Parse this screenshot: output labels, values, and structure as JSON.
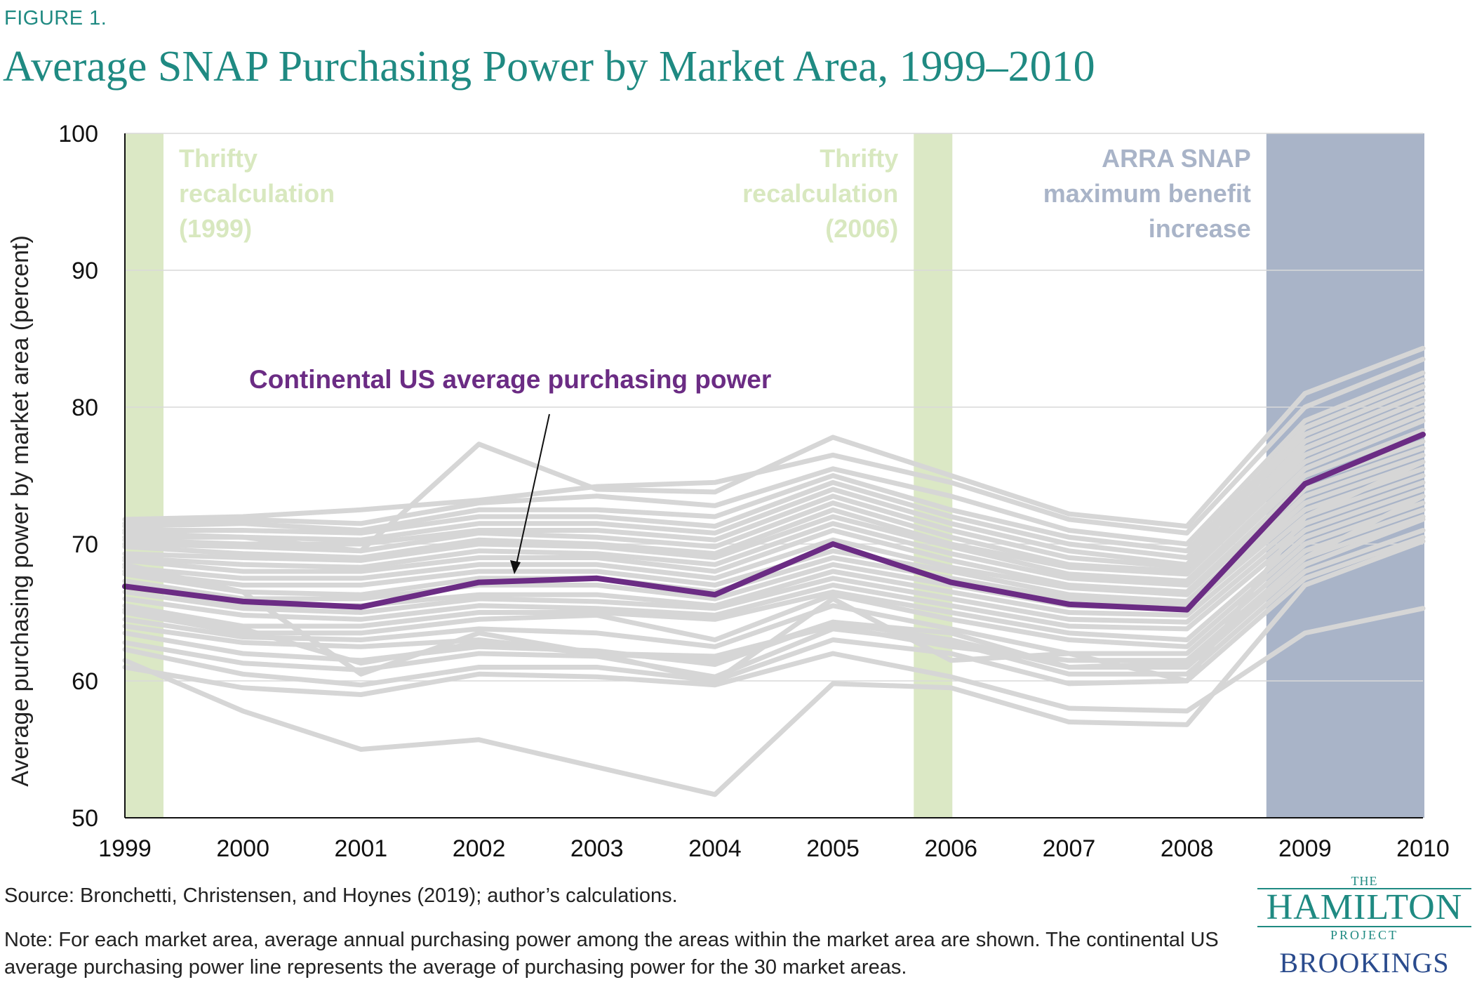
{
  "figure_label": "FIGURE 1.",
  "title": "Average SNAP Purchasing Power by Market Area, 1999–2010",
  "source": "Source: Bronchetti, Christensen, and Hoynes (2019); author’s calculations.",
  "note": "Note: For each market area, average annual purchasing power among the areas within the market area are shown. The continental US average purchasing power line represents the average of purchasing power for the 30 market areas.",
  "logo": {
    "the": "THE",
    "name": "HAMILTON",
    "project": "PROJECT",
    "org": "BROOKINGS"
  },
  "colors": {
    "title": "#1f8a82",
    "highlight": "#6b2c84",
    "background_lines": "#d6d6d6",
    "thrifty_band": "#dbe8c5",
    "arra_band": "#a9b4c8"
  },
  "chart_data": {
    "type": "line",
    "ylabel": "Average purchasing power by  market area (percent)",
    "xlabel": "",
    "ylim": [
      50,
      100
    ],
    "yticks": [
      50,
      60,
      70,
      80,
      90,
      100
    ],
    "grid": "horizontal",
    "x": [
      "1999",
      "2000",
      "2001",
      "2002",
      "2003",
      "2004",
      "2005",
      "2006",
      "2007",
      "2008",
      "2009",
      "2010"
    ],
    "highlight_series": {
      "name": "Continental US average purchasing power",
      "values": [
        66.9,
        65.8,
        65.4,
        67.2,
        67.5,
        66.3,
        70.0,
        67.2,
        65.6,
        65.2,
        74.4,
        78.0
      ]
    },
    "annotation": "Continental US average purchasing power",
    "shaded_regions": [
      {
        "label": [
          "Thrifty",
          "recalculation",
          "(1999)"
        ],
        "from": "1999",
        "to": "1999",
        "color": "thrifty"
      },
      {
        "label": [
          "Thrifty",
          "recalculation",
          "(2006)"
        ],
        "from": "2006",
        "to": "2006",
        "color": "thrifty"
      },
      {
        "label": [
          "ARRA SNAP",
          "maximum benefit",
          "increase"
        ],
        "from": "2009",
        "to": "2010",
        "color": "arra"
      }
    ],
    "series": [
      {
        "values": [
          61.0,
          59.5,
          59.0,
          60.5,
          60.3,
          59.7,
          62.0,
          60.3,
          58.0,
          57.8,
          63.5,
          65.3
        ]
      },
      {
        "values": [
          61.5,
          57.8,
          55.0,
          55.7,
          53.7,
          51.7,
          59.8,
          59.5,
          57.0,
          56.8,
          67.0,
          70.2
        ]
      },
      {
        "values": [
          62.3,
          60.5,
          59.7,
          61.0,
          61.0,
          60.0,
          63.0,
          62.0,
          59.8,
          60.0,
          67.5,
          70.5
        ]
      },
      {
        "values": [
          62.8,
          61.3,
          60.8,
          62.0,
          61.8,
          60.3,
          63.8,
          62.8,
          60.5,
          60.5,
          68.0,
          71.0
        ]
      },
      {
        "values": [
          63.5,
          62.0,
          61.5,
          62.5,
          62.2,
          61.2,
          64.3,
          63.0,
          61.0,
          61.0,
          68.5,
          71.8
        ]
      },
      {
        "values": [
          64.0,
          62.8,
          62.5,
          63.0,
          62.0,
          61.8,
          64.0,
          62.5,
          61.5,
          61.5,
          69.0,
          72.0
        ]
      },
      {
        "values": [
          64.5,
          63.2,
          63.0,
          63.8,
          63.5,
          62.5,
          65.5,
          63.8,
          62.0,
          62.0,
          69.5,
          72.5
        ]
      },
      {
        "values": [
          65.0,
          63.5,
          63.5,
          64.5,
          64.8,
          63.0,
          66.3,
          64.5,
          63.0,
          62.5,
          70.0,
          73.0
        ]
      },
      {
        "values": [
          65.5,
          64.0,
          64.0,
          65.0,
          65.0,
          64.5,
          66.5,
          65.0,
          63.5,
          63.0,
          70.5,
          73.5
        ]
      },
      {
        "values": [
          66.0,
          64.8,
          64.5,
          65.5,
          65.3,
          64.8,
          67.0,
          65.5,
          64.0,
          63.8,
          71.0,
          74.0
        ]
      },
      {
        "values": [
          66.5,
          65.3,
          65.0,
          66.0,
          65.8,
          65.3,
          67.5,
          66.0,
          64.5,
          64.3,
          71.5,
          74.5
        ]
      },
      {
        "values": [
          67.0,
          65.5,
          65.5,
          66.3,
          66.3,
          65.5,
          68.0,
          66.5,
          65.0,
          64.8,
          72.0,
          75.0
        ]
      },
      {
        "values": [
          67.3,
          66.0,
          66.0,
          67.0,
          67.0,
          66.0,
          68.5,
          67.0,
          65.5,
          65.3,
          72.5,
          75.5
        ]
      },
      {
        "values": [
          67.8,
          66.5,
          66.3,
          67.5,
          67.5,
          66.5,
          69.0,
          67.5,
          66.0,
          65.5,
          73.0,
          76.0
        ]
      },
      {
        "values": [
          68.0,
          67.0,
          67.0,
          68.0,
          68.0,
          67.0,
          69.5,
          68.0,
          66.3,
          65.8,
          73.5,
          76.5
        ]
      },
      {
        "values": [
          68.3,
          67.5,
          67.5,
          68.5,
          68.5,
          67.5,
          70.3,
          68.3,
          66.8,
          66.3,
          74.0,
          77.0
        ]
      },
      {
        "values": [
          68.8,
          68.0,
          68.0,
          69.0,
          69.0,
          68.0,
          71.0,
          68.8,
          67.0,
          66.5,
          74.5,
          77.5
        ]
      },
      {
        "values": [
          69.0,
          68.5,
          68.3,
          69.5,
          69.3,
          68.5,
          71.5,
          69.3,
          67.5,
          67.0,
          75.0,
          78.3
        ]
      },
      {
        "values": [
          69.3,
          69.0,
          68.8,
          70.0,
          69.8,
          69.0,
          72.0,
          69.8,
          67.8,
          67.3,
          75.5,
          79.0
        ]
      },
      {
        "values": [
          69.8,
          69.3,
          69.0,
          70.3,
          70.0,
          69.3,
          72.5,
          70.0,
          68.3,
          67.8,
          76.0,
          79.5
        ]
      },
      {
        "values": [
          70.0,
          69.8,
          69.5,
          70.8,
          70.5,
          69.8,
          73.0,
          70.5,
          68.5,
          68.0,
          76.5,
          80.0
        ]
      },
      {
        "values": [
          70.3,
          70.0,
          70.0,
          71.0,
          71.0,
          70.3,
          73.5,
          71.0,
          69.0,
          68.3,
          77.0,
          80.5
        ]
      },
      {
        "values": [
          70.8,
          70.5,
          70.3,
          71.5,
          71.5,
          70.8,
          74.0,
          71.5,
          69.5,
          68.5,
          77.5,
          81.0
        ]
      },
      {
        "values": [
          71.0,
          71.0,
          70.8,
          72.0,
          72.0,
          71.3,
          74.5,
          72.0,
          70.0,
          69.0,
          78.0,
          81.5
        ]
      },
      {
        "values": [
          71.3,
          71.5,
          71.0,
          72.5,
          72.5,
          72.0,
          75.0,
          72.5,
          70.5,
          69.5,
          78.5,
          82.0
        ]
      },
      {
        "values": [
          71.5,
          71.8,
          71.5,
          73.0,
          73.5,
          72.8,
          75.5,
          73.5,
          71.0,
          70.0,
          79.0,
          82.5
        ]
      },
      {
        "values": [
          71.8,
          72.0,
          72.5,
          73.2,
          74.2,
          74.5,
          76.5,
          74.5,
          71.8,
          70.8,
          80.0,
          83.5
        ]
      },
      {
        "values": [
          70.5,
          70.5,
          69.5,
          77.3,
          74.0,
          73.8,
          77.8,
          75.0,
          72.2,
          71.3,
          81.0,
          84.3
        ]
      },
      {
        "values": [
          65.2,
          63.8,
          61.3,
          62.8,
          62.0,
          61.5,
          64.3,
          63.5,
          61.0,
          61.3,
          69.0,
          73.5
        ]
      },
      {
        "values": [
          68.5,
          66.5,
          60.5,
          63.5,
          62.0,
          60.0,
          66.0,
          61.5,
          62.0,
          60.0,
          72.0,
          76.0
        ]
      }
    ]
  }
}
